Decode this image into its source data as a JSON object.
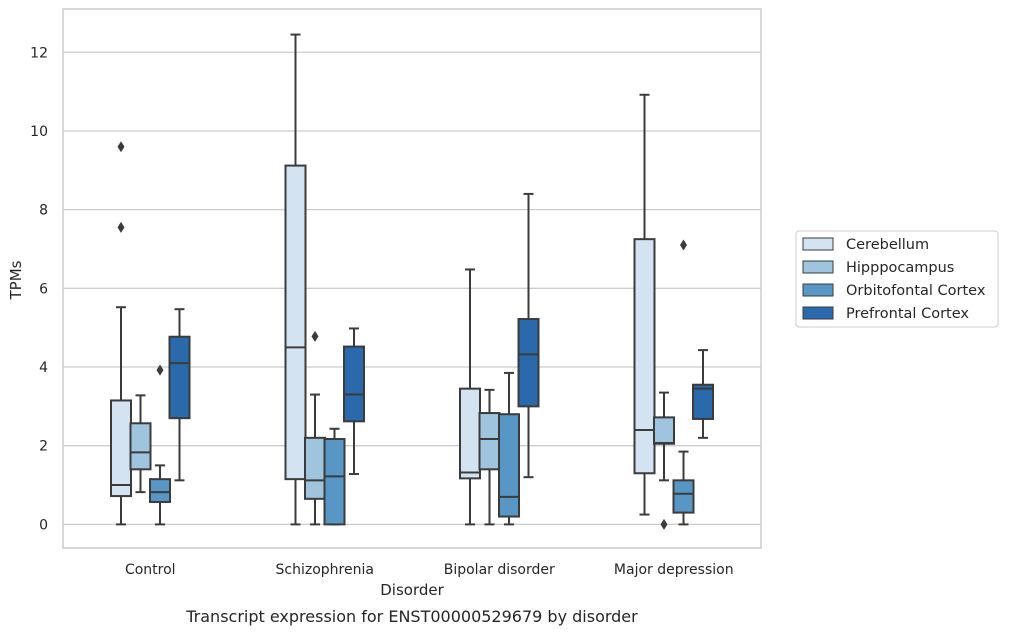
{
  "chart_data": {
    "type": "boxplot",
    "title": "",
    "caption": "Transcript expression for ENST00000529679 by disorder",
    "xlabel": "Disorder",
    "ylabel": "TPMs",
    "ylim": [
      -0.6,
      13.1
    ],
    "yticks": [
      "0",
      "2",
      "4",
      "6",
      "8",
      "10",
      "12"
    ],
    "grid": "horizontal",
    "legend_position": "right",
    "categories": [
      "Control",
      "Schizophrenia",
      "Bipolar disorder",
      "Major depression"
    ],
    "series": [
      {
        "name": "Cerebellum",
        "color": "#d4e3f2",
        "boxes": [
          {
            "whislo": 0,
            "q1": 0.72,
            "med": 1.0,
            "q3": 3.15,
            "whishi": 5.52,
            "fliers": [
              7.55,
              9.6
            ]
          },
          {
            "whislo": 0,
            "q1": 1.15,
            "med": 4.5,
            "q3": 9.12,
            "whishi": 12.45,
            "fliers": []
          },
          {
            "whislo": 0,
            "q1": 1.17,
            "med": 1.32,
            "q3": 3.45,
            "whishi": 6.48,
            "fliers": []
          },
          {
            "whislo": 0.25,
            "q1": 1.3,
            "med": 2.4,
            "q3": 7.25,
            "whishi": 10.92,
            "fliers": []
          }
        ]
      },
      {
        "name": "Hipppocampus",
        "color": "#9ec5dd",
        "boxes": [
          {
            "whislo": 0.82,
            "q1": 1.4,
            "med": 1.83,
            "q3": 2.57,
            "whishi": 3.28,
            "fliers": []
          },
          {
            "whislo": 0,
            "q1": 0.65,
            "med": 1.12,
            "q3": 2.2,
            "whishi": 3.3,
            "fliers": [
              4.78
            ]
          },
          {
            "whislo": 0,
            "q1": 1.4,
            "med": 2.17,
            "q3": 2.83,
            "whishi": 3.42,
            "fliers": []
          },
          {
            "whislo": 1.12,
            "q1": 2.05,
            "med": 2.07,
            "q3": 2.72,
            "whishi": 3.35,
            "fliers": [
              0
            ]
          }
        ]
      },
      {
        "name": "Orbitofontal Cortex",
        "color": "#5897c5",
        "boxes": [
          {
            "whislo": 0,
            "q1": 0.57,
            "med": 0.82,
            "q3": 1.15,
            "whishi": 1.5,
            "fliers": [
              3.92
            ]
          },
          {
            "whislo": 0,
            "q1": 0,
            "med": 1.22,
            "q3": 2.17,
            "whishi": 2.43,
            "fliers": []
          },
          {
            "whislo": 0,
            "q1": 0.2,
            "med": 0.7,
            "q3": 2.8,
            "whishi": 3.85,
            "fliers": []
          },
          {
            "whislo": 0,
            "q1": 0.3,
            "med": 0.78,
            "q3": 1.12,
            "whishi": 1.85,
            "fliers": [
              7.1
            ]
          }
        ]
      },
      {
        "name": "Prefrontal Cortex",
        "color": "#2a69ac",
        "boxes": [
          {
            "whislo": 1.12,
            "q1": 2.7,
            "med": 4.1,
            "q3": 4.77,
            "whishi": 5.47,
            "fliers": []
          },
          {
            "whislo": 1.28,
            "q1": 2.62,
            "med": 3.3,
            "q3": 4.52,
            "whishi": 4.98,
            "fliers": []
          },
          {
            "whislo": 1.2,
            "q1": 3.0,
            "med": 4.32,
            "q3": 5.22,
            "whishi": 8.4,
            "fliers": []
          },
          {
            "whislo": 2.2,
            "q1": 2.68,
            "med": 3.45,
            "q3": 3.55,
            "whishi": 4.43,
            "fliers": []
          }
        ]
      }
    ]
  }
}
